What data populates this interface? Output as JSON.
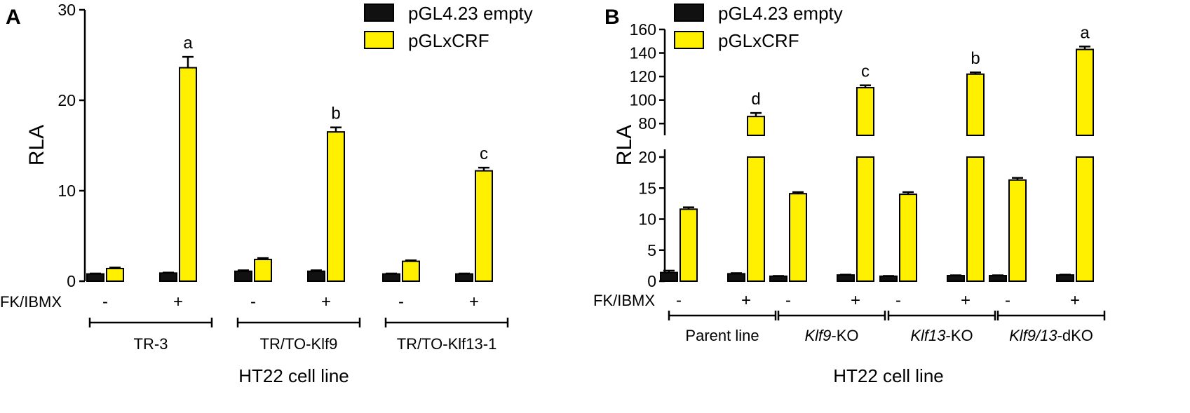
{
  "colors": {
    "empty": "#111111",
    "crf": "#FFF000",
    "axis": "#000000",
    "background": "#FFFFFF"
  },
  "legend": [
    "pGL4.23 empty",
    "pGLxCRF"
  ],
  "treatment_label": "FK/IBMX",
  "treatment_marks": [
    "-",
    "+"
  ],
  "chart_data": [
    {
      "panel": "A",
      "type": "bar",
      "ylabel": "RLA",
      "xlabel": "HT22 cell line",
      "ylim": [
        0,
        30
      ],
      "yticks": [
        "0",
        "10",
        "20",
        "30"
      ],
      "groups": [
        "TR-3",
        "TR/TO-Klf9",
        "TR/TO-Klf13-1"
      ],
      "treatment": [
        "-",
        "+"
      ],
      "series": [
        {
          "name": "pGL4.23 empty",
          "values": [
            [
              0.8,
              0.9
            ],
            [
              1.1,
              1.1
            ],
            [
              0.8,
              0.8
            ]
          ],
          "errors": [
            [
              0.05,
              0.05
            ],
            [
              0.1,
              0.1
            ],
            [
              0.05,
              0.05
            ]
          ]
        },
        {
          "name": "pGLxCRF",
          "values": [
            [
              1.4,
              23.6
            ],
            [
              2.4,
              16.5
            ],
            [
              2.2,
              12.2
            ]
          ],
          "errors": [
            [
              0.1,
              1.2
            ],
            [
              0.15,
              0.5
            ],
            [
              0.1,
              0.35
            ]
          ]
        }
      ],
      "significance": [
        [
          "",
          "a"
        ],
        [
          "",
          "b"
        ],
        [
          "",
          "c"
        ]
      ]
    },
    {
      "panel": "B",
      "type": "bar",
      "ylabel": "RLA",
      "xlabel": "HT22 cell line",
      "axis_break": {
        "lower": [
          0,
          20
        ],
        "upper": [
          70,
          160
        ]
      },
      "yticks_lower": [
        "0",
        "5",
        "10",
        "15",
        "20"
      ],
      "yticks_upper": [
        "80",
        "100",
        "120",
        "140",
        "160"
      ],
      "groups": [
        {
          "italic": "",
          "rest": "Parent line"
        },
        {
          "italic": "Klf9",
          "rest": "-KO"
        },
        {
          "italic": "Klf13",
          "rest": "-KO"
        },
        {
          "italic": "Klf9/13",
          "rest": "-dKO"
        }
      ],
      "treatment": [
        "-",
        "+"
      ],
      "series": [
        {
          "name": "pGL4.23 empty",
          "values": [
            [
              1.4,
              1.2
            ],
            [
              0.8,
              1.0
            ],
            [
              0.8,
              0.9
            ],
            [
              0.9,
              1.0
            ]
          ],
          "errors": [
            [
              0.3,
              0.1
            ],
            [
              0.05,
              0.05
            ],
            [
              0.05,
              0.05
            ],
            [
              0.05,
              0.05
            ]
          ]
        },
        {
          "name": "pGLxCRF",
          "values": [
            [
              11.6,
              86.0
            ],
            [
              14.1,
              110.5
            ],
            [
              14.0,
              122.0
            ],
            [
              16.3,
              143.0
            ]
          ],
          "errors": [
            [
              0.3,
              3.0
            ],
            [
              0.25,
              2.0
            ],
            [
              0.35,
              1.5
            ],
            [
              0.35,
              2.5
            ]
          ]
        }
      ],
      "significance": [
        [
          "",
          "d"
        ],
        [
          "",
          "c"
        ],
        [
          "",
          "b"
        ],
        [
          "",
          "a"
        ]
      ]
    }
  ]
}
